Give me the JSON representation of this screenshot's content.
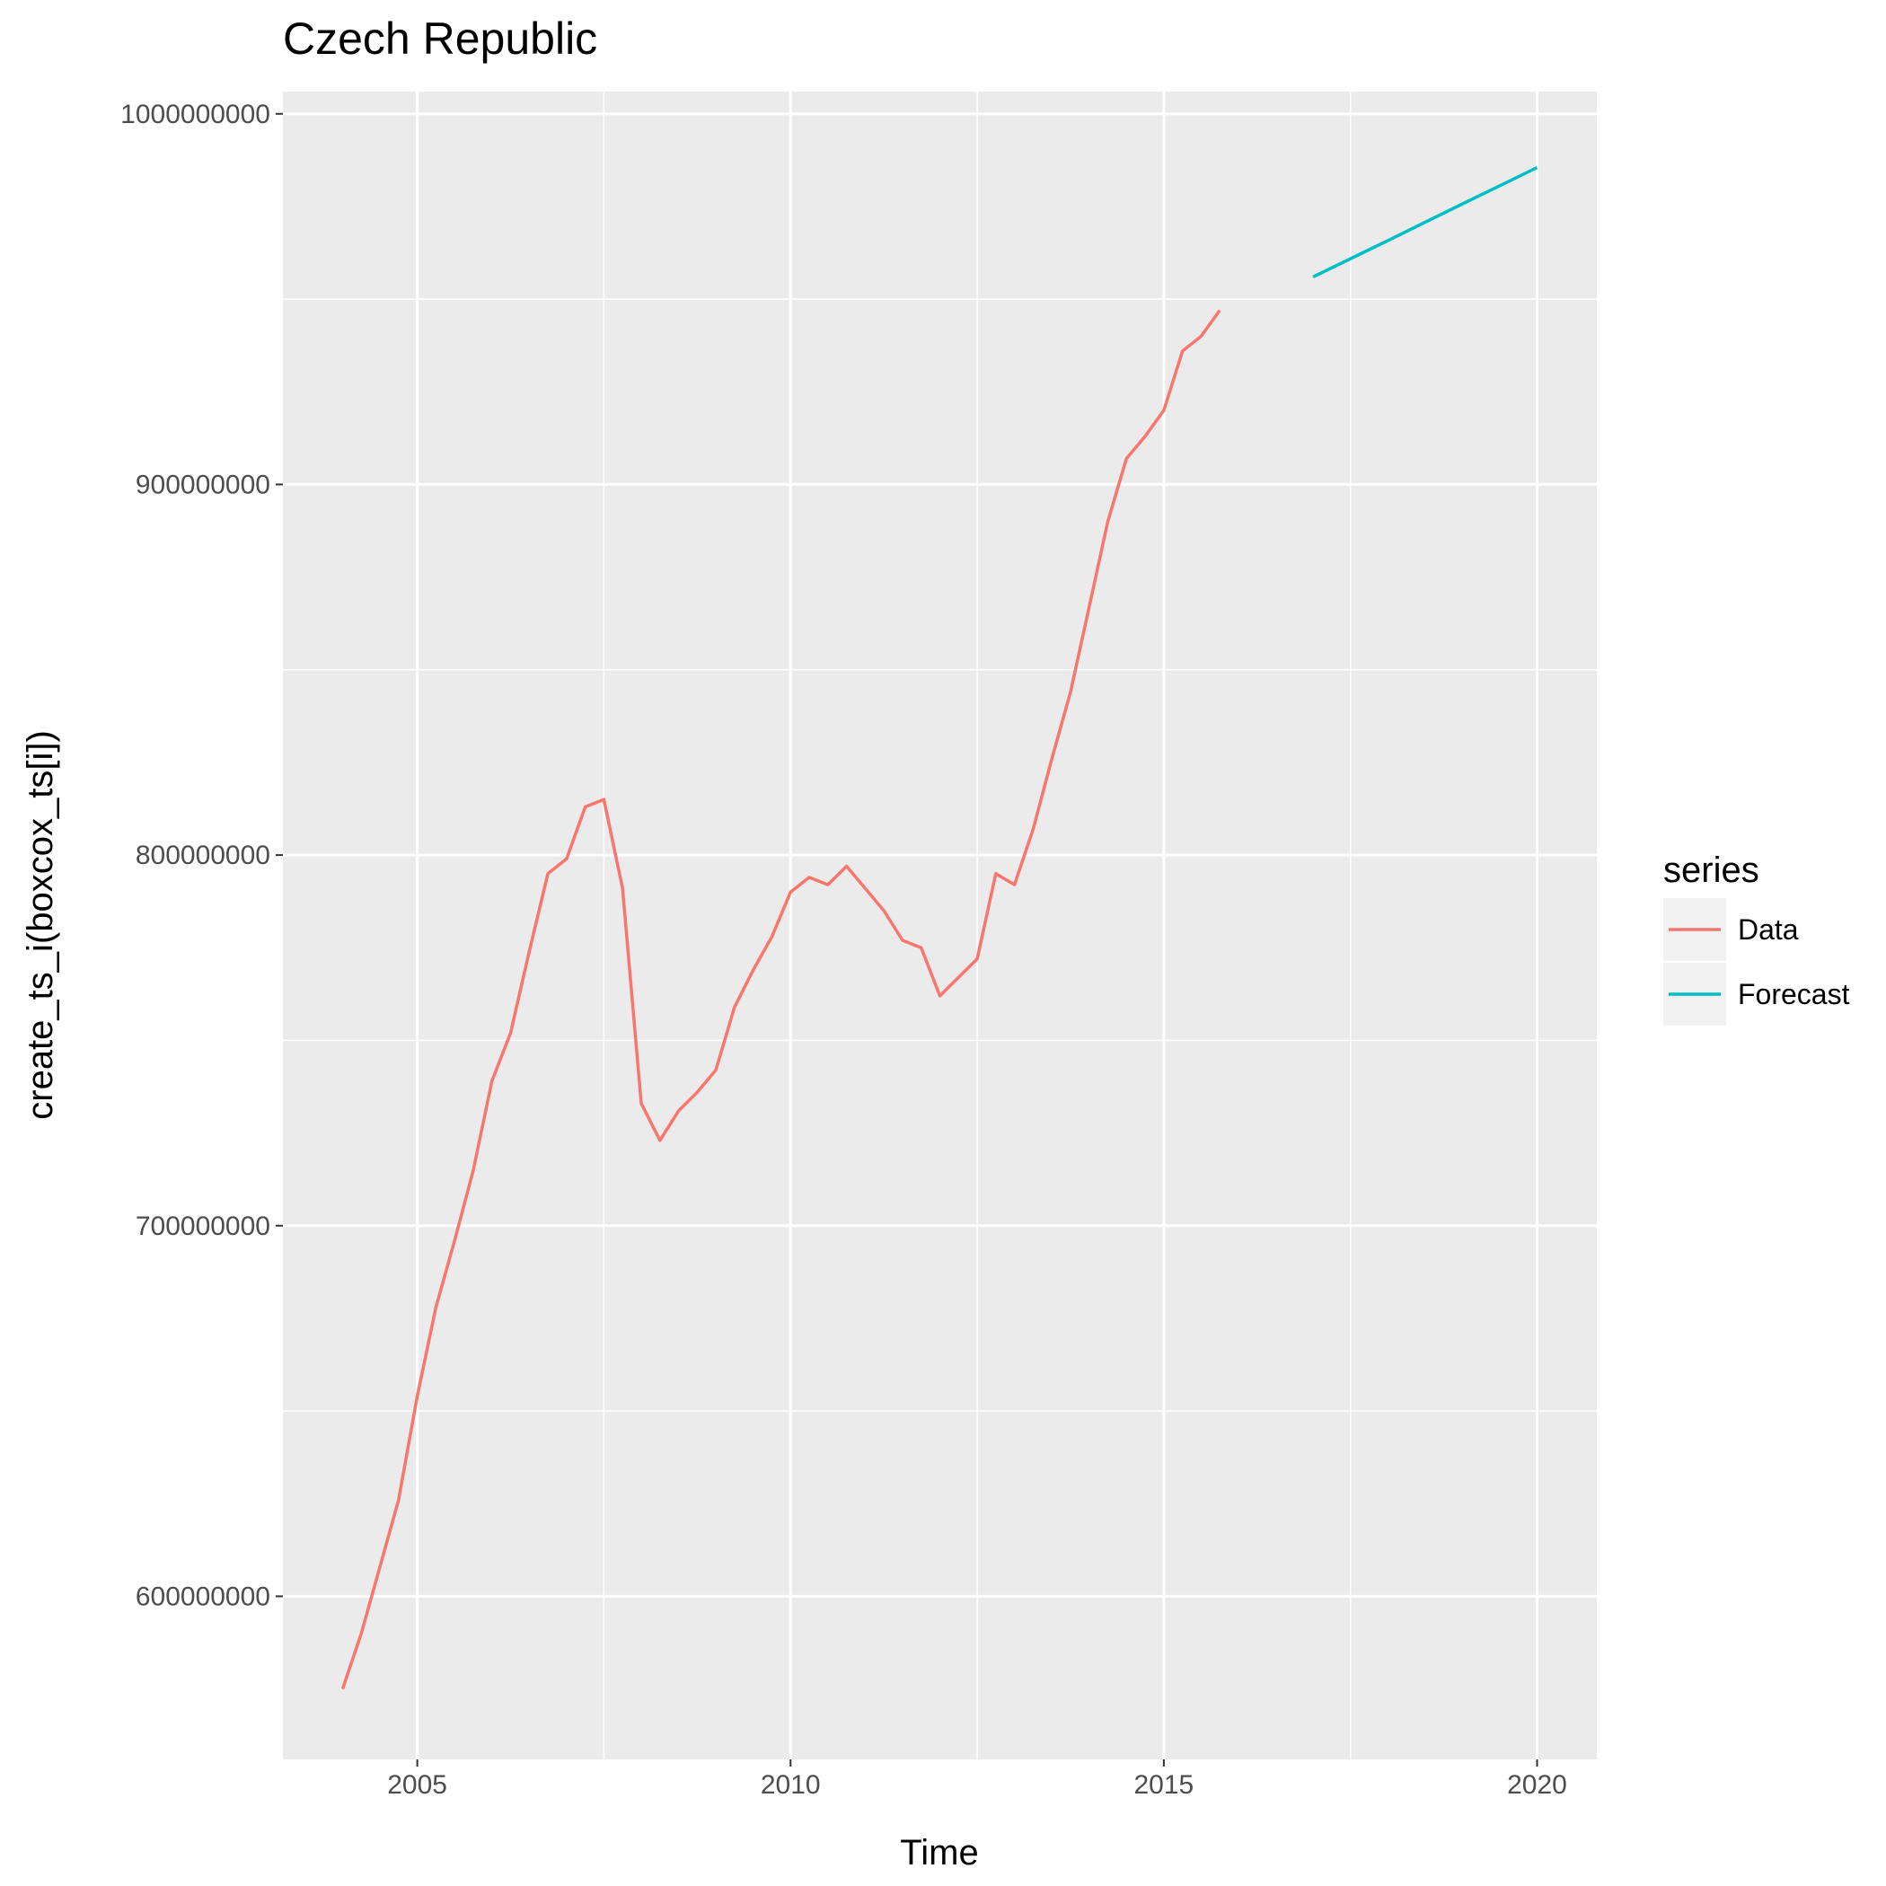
{
  "chart_data": {
    "type": "line",
    "title": "Czech Republic",
    "xlabel": "Time",
    "ylabel": "create_ts_i(boxcox_ts[i])",
    "xlim": [
      2003.2,
      2020.8
    ],
    "ylim": [
      556000000,
      1006000000
    ],
    "x_ticks": [
      2005,
      2010,
      2015,
      2020
    ],
    "x_tick_labels": [
      "2005",
      "2010",
      "2015",
      "2020"
    ],
    "y_ticks": [
      600000000,
      700000000,
      800000000,
      900000000,
      1000000000
    ],
    "y_tick_labels": [
      "600000000",
      "700000000",
      "800000000",
      "900000000",
      "1000000000"
    ],
    "grid": true,
    "legend": {
      "title": "series",
      "position": "right"
    },
    "series": [
      {
        "name": "Data",
        "color": "#F8766D",
        "x": [
          2004.0,
          2004.25,
          2004.5,
          2004.75,
          2005.0,
          2005.25,
          2005.5,
          2005.75,
          2006.0,
          2006.25,
          2006.5,
          2006.75,
          2007.0,
          2007.25,
          2007.5,
          2007.75,
          2008.0,
          2008.25,
          2008.5,
          2008.75,
          2009.0,
          2009.25,
          2009.5,
          2009.75,
          2010.0,
          2010.25,
          2010.5,
          2010.75,
          2011.0,
          2011.25,
          2011.5,
          2011.75,
          2012.0,
          2012.25,
          2012.5,
          2012.75,
          2013.0,
          2013.25,
          2013.5,
          2013.75,
          2014.0,
          2014.25,
          2014.5,
          2014.75,
          2015.0,
          2015.25,
          2015.5,
          2015.75
        ],
        "values": [
          575000000,
          590000000,
          608000000,
          626000000,
          654000000,
          678000000,
          696000000,
          715000000,
          739000000,
          752000000,
          774000000,
          795000000,
          799000000,
          813000000,
          815000000,
          791000000,
          733000000,
          723000000,
          731000000,
          736000000,
          742000000,
          759000000,
          769000000,
          778000000,
          790000000,
          794000000,
          792000000,
          797000000,
          791000000,
          785000000,
          777000000,
          775000000,
          762000000,
          767000000,
          772000000,
          795000000,
          792000000,
          807000000,
          826000000,
          844000000,
          867000000,
          890000000,
          907000000,
          913000000,
          920000000,
          936000000,
          940000000,
          947000000
        ]
      },
      {
        "name": "Forecast",
        "color": "#00BFC4",
        "x": [
          2017.0,
          2018.0,
          2019.0,
          2020.0
        ],
        "values": [
          956000000,
          965800000,
          975700000,
          985500000
        ]
      }
    ]
  }
}
